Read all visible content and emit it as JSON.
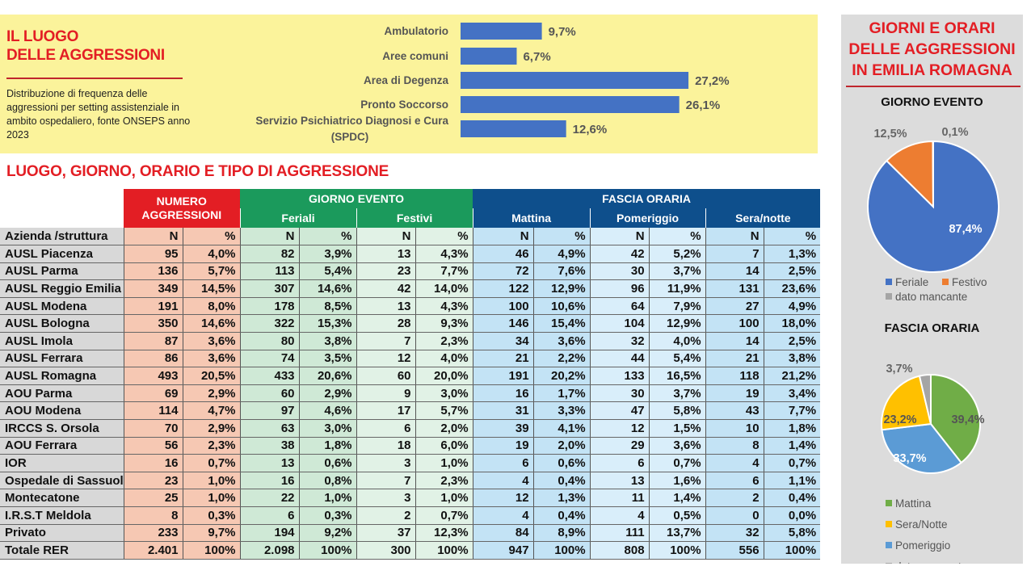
{
  "luogo": {
    "title_line1": "IL LUOGO",
    "title_line2": "DELLE AGGRESSIONI",
    "description": "Distribuzione di frequenza delle aggressioni per setting assistenziale in ambito ospedaliero, fonte ONSEPS anno 2023"
  },
  "section_title": "LUOGO, GIORNO, ORARIO E TIPO DI AGGRESSIONE",
  "right_panel": {
    "title_lines": [
      "GIORNI E ORARI",
      "DELLE AGGRESSIONI",
      "IN EMILIA ROMAGNA"
    ]
  },
  "chart_data": [
    {
      "type": "bar",
      "orientation": "horizontal",
      "categories": [
        "Ambulatorio",
        "Aree comuni",
        "Area di Degenza",
        "Pronto Soccorso",
        "Servizio Psichiatrico Diagnosi e Cura (SPDC)"
      ],
      "values": [
        9.7,
        6.7,
        27.2,
        26.1,
        12.6
      ],
      "data_labels": [
        "9,7%",
        "6,7%",
        "27,2%",
        "26,1%",
        "12,6%"
      ],
      "color": "#4472c4"
    },
    {
      "type": "pie",
      "title": "GIORNO EVENTO",
      "categories": [
        "Feriale",
        "Festivo",
        "dato mancante"
      ],
      "values": [
        87.4,
        12.5,
        0.1
      ],
      "data_labels": [
        "87,4%",
        "12,5%",
        "0,1%"
      ],
      "colors": [
        "#4472c4",
        "#ed7d31",
        "#a5a5a5"
      ],
      "legend": "bottom"
    },
    {
      "type": "pie",
      "title": "FASCIA ORARIA",
      "categories": [
        "Mattina",
        "Pomeriggio",
        "Sera/Notte",
        "dato mancante"
      ],
      "values": [
        39.4,
        33.7,
        23.2,
        3.7
      ],
      "data_labels": [
        "39,4%",
        "33,7%",
        "23,2%",
        "3,7%"
      ],
      "colors": [
        "#70ad47",
        "#5b9bd5",
        "#ffc000",
        "#a5a5a5"
      ],
      "legend_order": [
        "Mattina",
        "Sera/Notte",
        "Pomeriggio",
        "dato mancante"
      ],
      "legend": "bottom"
    },
    {
      "type": "table",
      "group_headers": [
        {
          "label": "NUMERO AGGRESSIONI",
          "color": "#e31e24"
        },
        {
          "label": "GIORNO EVENTO",
          "color": "#1b9a5c",
          "sub": [
            "Feriali",
            "Festivi"
          ]
        },
        {
          "label": "FASCIA ORARIA",
          "color": "#0e4f8c",
          "sub": [
            "Mattina",
            "Pomeriggio",
            "Sera/notte"
          ]
        }
      ],
      "columns": [
        "Azienda /struttura",
        "N",
        "%",
        "N",
        "%",
        "N",
        "%",
        "N",
        "%",
        "N",
        "%",
        "N",
        "%"
      ],
      "rows": [
        [
          "AUSL Piacenza",
          "95",
          "4,0%",
          "82",
          "3,9%",
          "13",
          "4,3%",
          "46",
          "4,9%",
          "42",
          "5,2%",
          "7",
          "1,3%"
        ],
        [
          "AUSL Parma",
          "136",
          "5,7%",
          "113",
          "5,4%",
          "23",
          "7,7%",
          "72",
          "7,6%",
          "30",
          "3,7%",
          "14",
          "2,5%"
        ],
        [
          "AUSL Reggio Emilia",
          "349",
          "14,5%",
          "307",
          "14,6%",
          "42",
          "14,0%",
          "122",
          "12,9%",
          "96",
          "11,9%",
          "131",
          "23,6%"
        ],
        [
          "AUSL Modena",
          "191",
          "8,0%",
          "178",
          "8,5%",
          "13",
          "4,3%",
          "100",
          "10,6%",
          "64",
          "7,9%",
          "27",
          "4,9%"
        ],
        [
          "AUSL Bologna",
          "350",
          "14,6%",
          "322",
          "15,3%",
          "28",
          "9,3%",
          "146",
          "15,4%",
          "104",
          "12,9%",
          "100",
          "18,0%"
        ],
        [
          "AUSL Imola",
          "87",
          "3,6%",
          "80",
          "3,8%",
          "7",
          "2,3%",
          "34",
          "3,6%",
          "32",
          "4,0%",
          "14",
          "2,5%"
        ],
        [
          "AUSL Ferrara",
          "86",
          "3,6%",
          "74",
          "3,5%",
          "12",
          "4,0%",
          "21",
          "2,2%",
          "44",
          "5,4%",
          "21",
          "3,8%"
        ],
        [
          "AUSL Romagna",
          "493",
          "20,5%",
          "433",
          "20,6%",
          "60",
          "20,0%",
          "191",
          "20,2%",
          "133",
          "16,5%",
          "118",
          "21,2%"
        ],
        [
          "AOU Parma",
          "69",
          "2,9%",
          "60",
          "2,9%",
          "9",
          "3,0%",
          "16",
          "1,7%",
          "30",
          "3,7%",
          "19",
          "3,4%"
        ],
        [
          "AOU Modena",
          "114",
          "4,7%",
          "97",
          "4,6%",
          "17",
          "5,7%",
          "31",
          "3,3%",
          "47",
          "5,8%",
          "43",
          "7,7%"
        ],
        [
          "IRCCS S. Orsola",
          "70",
          "2,9%",
          "63",
          "3,0%",
          "6",
          "2,0%",
          "39",
          "4,1%",
          "12",
          "1,5%",
          "10",
          "1,8%"
        ],
        [
          "AOU Ferrara",
          "56",
          "2,3%",
          "38",
          "1,8%",
          "18",
          "6,0%",
          "19",
          "2,0%",
          "29",
          "3,6%",
          "8",
          "1,4%"
        ],
        [
          "IOR",
          "16",
          "0,7%",
          "13",
          "0,6%",
          "3",
          "1,0%",
          "6",
          "0,6%",
          "6",
          "0,7%",
          "4",
          "0,7%"
        ],
        [
          "Ospedale di Sassuolo",
          "23",
          "1,0%",
          "16",
          "0,8%",
          "7",
          "2,3%",
          "4",
          "0,4%",
          "13",
          "1,6%",
          "6",
          "1,1%"
        ],
        [
          "Montecatone",
          "25",
          "1,0%",
          "22",
          "1,0%",
          "3",
          "1,0%",
          "12",
          "1,3%",
          "11",
          "1,4%",
          "2",
          "0,4%"
        ],
        [
          "I.R.S.T Meldola",
          "8",
          "0,3%",
          "6",
          "0,3%",
          "2",
          "0,7%",
          "4",
          "0,4%",
          "4",
          "0,5%",
          "0",
          "0,0%"
        ],
        [
          "Privato",
          "233",
          "9,7%",
          "194",
          "9,2%",
          "37",
          "12,3%",
          "84",
          "8,9%",
          "111",
          "13,7%",
          "32",
          "5,8%"
        ],
        [
          "Totale RER",
          "2.401",
          "100%",
          "2.098",
          "100%",
          "300",
          "100%",
          "947",
          "100%",
          "808",
          "100%",
          "556",
          "100%"
        ]
      ]
    }
  ]
}
